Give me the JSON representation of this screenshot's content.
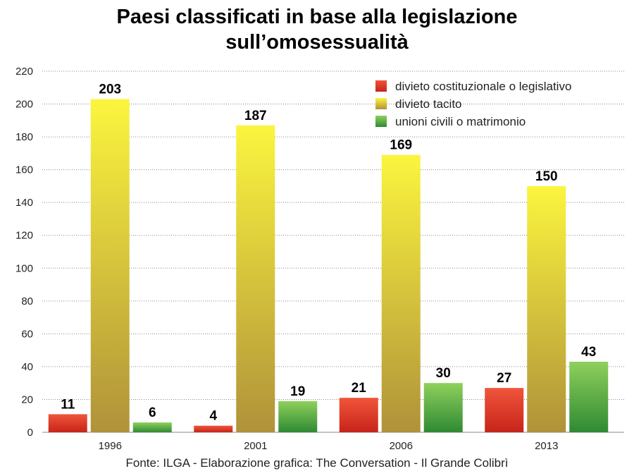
{
  "chart_data": {
    "type": "bar",
    "title_lines": [
      "Paesi classificati in base alla legislazione",
      "sull’omosessualità"
    ],
    "categories": [
      "1996",
      "2001",
      "2006",
      "2013"
    ],
    "series": [
      {
        "name": "divieto costituzionale o legislativo",
        "values": [
          11,
          4,
          21,
          27
        ],
        "color_top": "#f0553a",
        "color_bottom": "#c7241a"
      },
      {
        "name": "divieto tacito",
        "values": [
          203,
          187,
          169,
          150
        ],
        "color_top": "#fbf53e",
        "color_bottom": "#b0923a"
      },
      {
        "name": "unioni civili o matrimonio",
        "values": [
          6,
          19,
          30,
          43
        ],
        "color_top": "#8fd05c",
        "color_bottom": "#2f8a33"
      }
    ],
    "ylim": [
      0,
      220
    ],
    "yticks": [
      0,
      20,
      40,
      60,
      80,
      100,
      120,
      140,
      160,
      180,
      200,
      220
    ],
    "grid": true,
    "legend_position": "top-right",
    "source": "Fonte: ILGA - Elaborazione grafica: The Conversation - Il Grande Colibrì"
  }
}
